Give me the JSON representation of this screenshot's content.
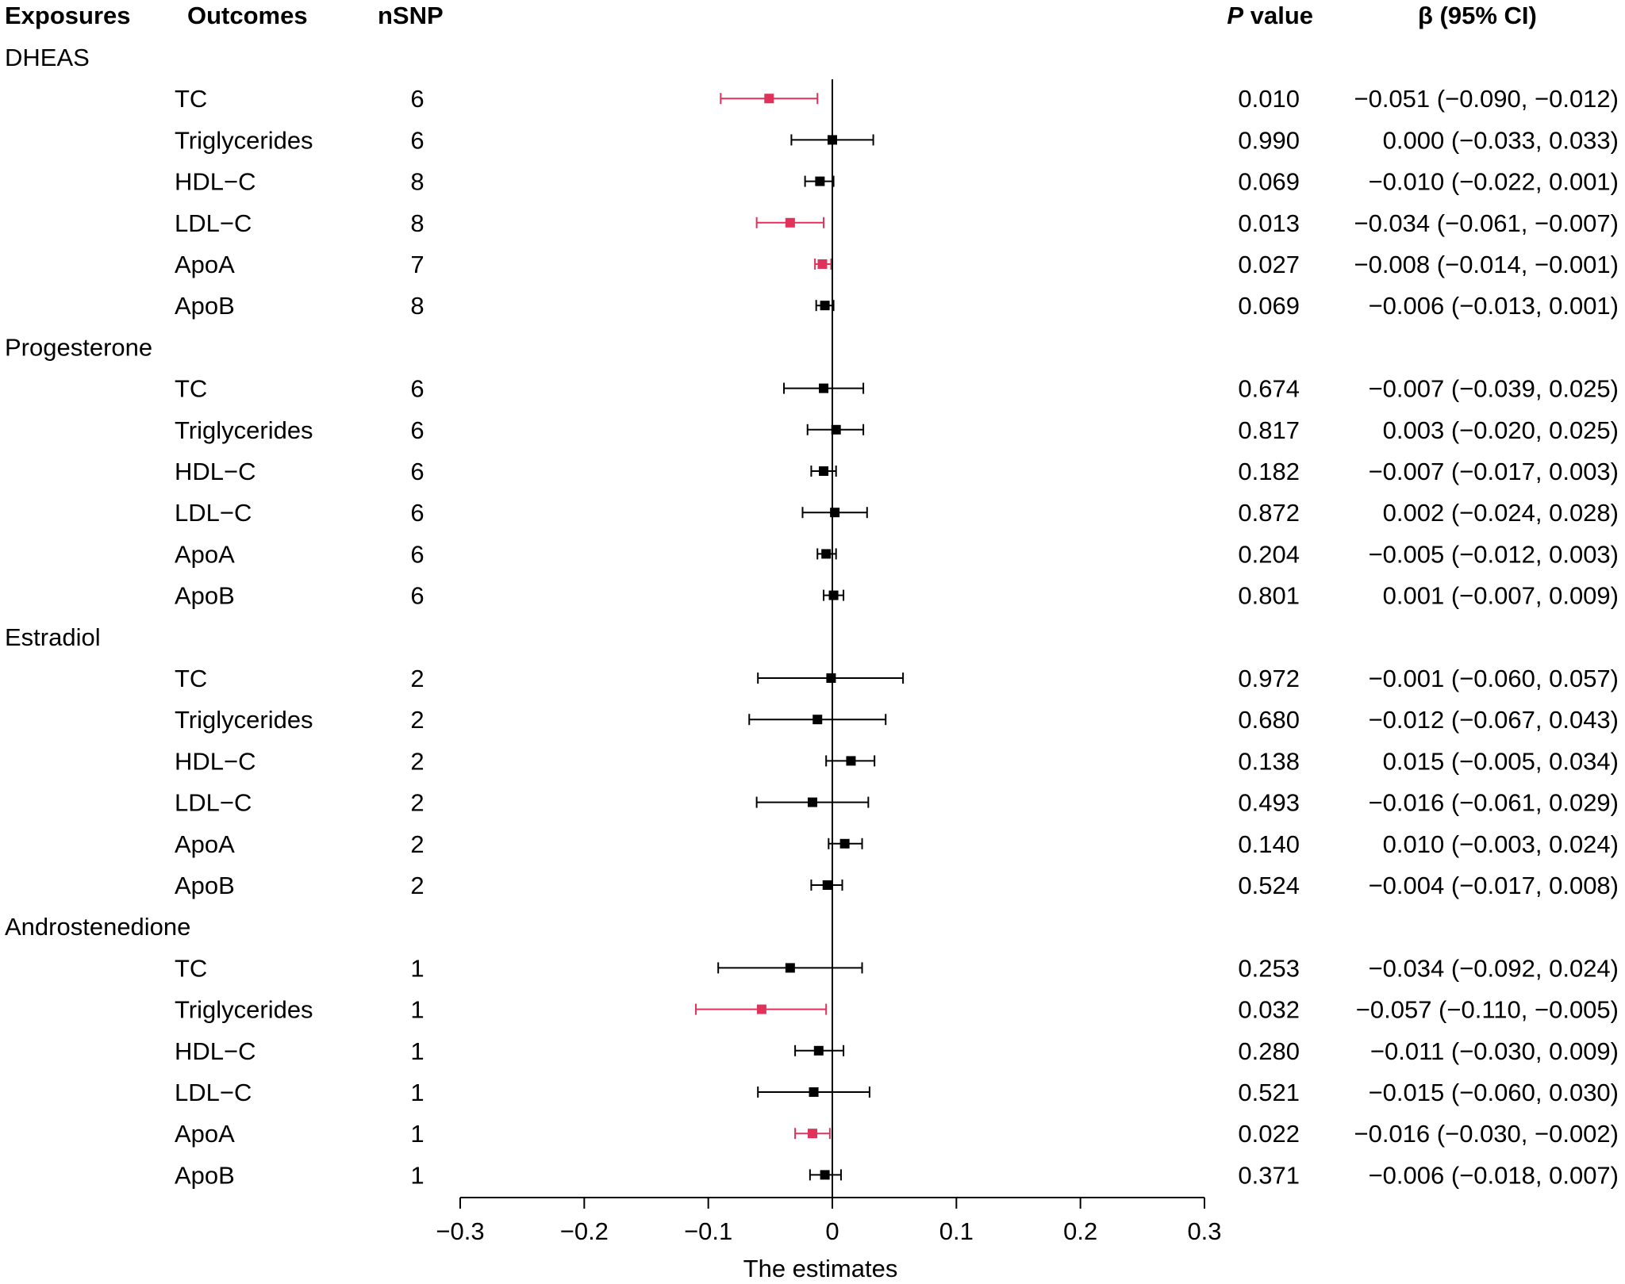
{
  "chart_data": {
    "type": "forest",
    "headers": {
      "exposures": "Exposures",
      "outcomes": "Outcomes",
      "nsnp": "nSNP",
      "p_letter": "P",
      "p_rest": " value",
      "beta": "β (95% CI)"
    },
    "xlabel": "The estimates",
    "xlim": [
      -0.3,
      0.3
    ],
    "xticks": [
      -0.3,
      -0.2,
      -0.1,
      0,
      0.1,
      0.2,
      0.3
    ],
    "xtick_labels": [
      "−0.3",
      "−0.2",
      "−0.1",
      "0",
      "0.1",
      "0.2",
      "0.3"
    ],
    "colors": {
      "significant": "#e0325a",
      "default": "#000000"
    },
    "groups": [
      {
        "exposure": "DHEAS",
        "rows": [
          {
            "outcome": "TC",
            "nsnp": "6",
            "beta": -0.051,
            "lo": -0.09,
            "hi": -0.012,
            "p": "0.010",
            "ci_text": "−0.051 (−0.090, −0.012)",
            "significant": true
          },
          {
            "outcome": "Triglycerides",
            "nsnp": "6",
            "beta": 0.0,
            "lo": -0.033,
            "hi": 0.033,
            "p": "0.990",
            "ci_text": "0.000 (−0.033, 0.033)",
            "significant": false
          },
          {
            "outcome": "HDL−C",
            "nsnp": "8",
            "beta": -0.01,
            "lo": -0.022,
            "hi": 0.001,
            "p": "0.069",
            "ci_text": "−0.010 (−0.022, 0.001)",
            "significant": false
          },
          {
            "outcome": "LDL−C",
            "nsnp": "8",
            "beta": -0.034,
            "lo": -0.061,
            "hi": -0.007,
            "p": "0.013",
            "ci_text": "−0.034 (−0.061, −0.007)",
            "significant": true
          },
          {
            "outcome": "ApoA",
            "nsnp": "7",
            "beta": -0.008,
            "lo": -0.014,
            "hi": -0.001,
            "p": "0.027",
            "ci_text": "−0.008 (−0.014, −0.001)",
            "significant": true
          },
          {
            "outcome": "ApoB",
            "nsnp": "8",
            "beta": -0.006,
            "lo": -0.013,
            "hi": 0.001,
            "p": "0.069",
            "ci_text": "−0.006 (−0.013, 0.001)",
            "significant": false
          }
        ]
      },
      {
        "exposure": "Progesterone",
        "rows": [
          {
            "outcome": "TC",
            "nsnp": "6",
            "beta": -0.007,
            "lo": -0.039,
            "hi": 0.025,
            "p": "0.674",
            "ci_text": "−0.007 (−0.039, 0.025)",
            "significant": false
          },
          {
            "outcome": "Triglycerides",
            "nsnp": "6",
            "beta": 0.003,
            "lo": -0.02,
            "hi": 0.025,
            "p": "0.817",
            "ci_text": "0.003 (−0.020, 0.025)",
            "significant": false
          },
          {
            "outcome": "HDL−C",
            "nsnp": "6",
            "beta": -0.007,
            "lo": -0.017,
            "hi": 0.003,
            "p": "0.182",
            "ci_text": "−0.007 (−0.017, 0.003)",
            "significant": false
          },
          {
            "outcome": "LDL−C",
            "nsnp": "6",
            "beta": 0.002,
            "lo": -0.024,
            "hi": 0.028,
            "p": "0.872",
            "ci_text": "0.002 (−0.024, 0.028)",
            "significant": false
          },
          {
            "outcome": "ApoA",
            "nsnp": "6",
            "beta": -0.005,
            "lo": -0.012,
            "hi": 0.003,
            "p": "0.204",
            "ci_text": "−0.005 (−0.012, 0.003)",
            "significant": false
          },
          {
            "outcome": "ApoB",
            "nsnp": "6",
            "beta": 0.001,
            "lo": -0.007,
            "hi": 0.009,
            "p": "0.801",
            "ci_text": "0.001 (−0.007, 0.009)",
            "significant": false
          }
        ]
      },
      {
        "exposure": "Estradiol",
        "rows": [
          {
            "outcome": "TC",
            "nsnp": "2",
            "beta": -0.001,
            "lo": -0.06,
            "hi": 0.057,
            "p": "0.972",
            "ci_text": "−0.001 (−0.060, 0.057)",
            "significant": false
          },
          {
            "outcome": "Triglycerides",
            "nsnp": "2",
            "beta": -0.012,
            "lo": -0.067,
            "hi": 0.043,
            "p": "0.680",
            "ci_text": "−0.012 (−0.067, 0.043)",
            "significant": false
          },
          {
            "outcome": "HDL−C",
            "nsnp": "2",
            "beta": 0.015,
            "lo": -0.005,
            "hi": 0.034,
            "p": "0.138",
            "ci_text": "0.015 (−0.005, 0.034)",
            "significant": false
          },
          {
            "outcome": "LDL−C",
            "nsnp": "2",
            "beta": -0.016,
            "lo": -0.061,
            "hi": 0.029,
            "p": "0.493",
            "ci_text": "−0.016 (−0.061, 0.029)",
            "significant": false
          },
          {
            "outcome": "ApoA",
            "nsnp": "2",
            "beta": 0.01,
            "lo": -0.003,
            "hi": 0.024,
            "p": "0.140",
            "ci_text": "0.010 (−0.003, 0.024)",
            "significant": false
          },
          {
            "outcome": "ApoB",
            "nsnp": "2",
            "beta": -0.004,
            "lo": -0.017,
            "hi": 0.008,
            "p": "0.524",
            "ci_text": "−0.004 (−0.017, 0.008)",
            "significant": false
          }
        ]
      },
      {
        "exposure": "Androstenedione",
        "rows": [
          {
            "outcome": "TC",
            "nsnp": "1",
            "beta": -0.034,
            "lo": -0.092,
            "hi": 0.024,
            "p": "0.253",
            "ci_text": "−0.034 (−0.092, 0.024)",
            "significant": false
          },
          {
            "outcome": "Triglycerides",
            "nsnp": "1",
            "beta": -0.057,
            "lo": -0.11,
            "hi": -0.005,
            "p": "0.032",
            "ci_text": "−0.057 (−0.110, −0.005)",
            "significant": true
          },
          {
            "outcome": "HDL−C",
            "nsnp": "1",
            "beta": -0.011,
            "lo": -0.03,
            "hi": 0.009,
            "p": "0.280",
            "ci_text": "−0.011 (−0.030, 0.009)",
            "significant": false
          },
          {
            "outcome": "LDL−C",
            "nsnp": "1",
            "beta": -0.015,
            "lo": -0.06,
            "hi": 0.03,
            "p": "0.521",
            "ci_text": "−0.015 (−0.060, 0.030)",
            "significant": false
          },
          {
            "outcome": "ApoA",
            "nsnp": "1",
            "beta": -0.016,
            "lo": -0.03,
            "hi": -0.002,
            "p": "0.022",
            "ci_text": "−0.016 (−0.030, −0.002)",
            "significant": true
          },
          {
            "outcome": "ApoB",
            "nsnp": "1",
            "beta": -0.006,
            "lo": -0.018,
            "hi": 0.007,
            "p": "0.371",
            "ci_text": "−0.006 (−0.018, 0.007)",
            "significant": false
          }
        ]
      }
    ]
  }
}
